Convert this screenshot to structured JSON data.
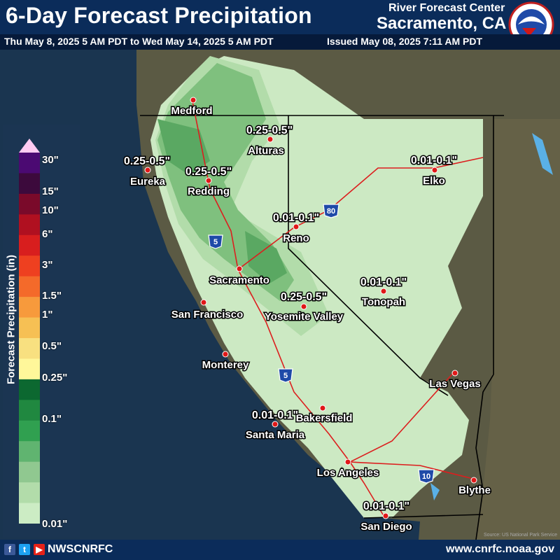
{
  "header": {
    "title": "6-Day Forecast Precipitation",
    "rfc_name": "River Forecast Center",
    "rfc_city": "Sacramento, CA",
    "period": "Thu May 8, 2025 5 AM PDT to Wed May 14, 2025 5 AM PDT",
    "issued": "Issued May 08, 2025 7:11 AM PDT",
    "logo_text": "NATIONAL WEATHER SERVICE",
    "logo_icon": "nws-logo-icon"
  },
  "legend": {
    "title": "Forecast Precipitation (in)",
    "labels": [
      "30\"",
      "15\"",
      "10\"",
      "6\"",
      "3\"",
      "1.5\"",
      "1\"",
      "0.5\"",
      "0.25\"",
      "0.1\"",
      "0.01\""
    ],
    "colors": [
      "#ffccf2",
      "#4b0a72",
      "#3c0a3c",
      "#7a0a2a",
      "#b01020",
      "#d81e1e",
      "#ee4020",
      "#f46a2a",
      "#f79a3c",
      "#f6c054",
      "#f8e080",
      "#fff79a",
      "#0c6830",
      "#208840",
      "#30a050",
      "#60b470",
      "#90c890",
      "#b2dcaa",
      "#ccecc4"
    ]
  },
  "map": {
    "cities": [
      "Medford",
      "Eureka",
      "Redding",
      "Alturas",
      "Reno",
      "Elko",
      "Sacramento",
      "San Francisco",
      "Yosemite Valley",
      "Tonopah",
      "Monterey",
      "Las Vegas",
      "Bakersfield",
      "Santa Maria",
      "Los Angeles",
      "Blythe",
      "San Diego"
    ],
    "ranges": {
      "alturas": "0.25-0.5\"",
      "eureka": "0.25-0.5\"",
      "redding": "0.25-0.5\"",
      "elko": "0.01-0.1\"",
      "reno": "0.01-0.1\"",
      "tonopah": "0.01-0.1\"",
      "yosemite": "0.25-0.5\"",
      "santa_maria": "0.01-0.1\"",
      "san_diego": "0.01-0.1\""
    },
    "interstates": [
      "5",
      "80",
      "5",
      "10"
    ],
    "credit": "Source: US National Park Service"
  },
  "footer": {
    "handle": "NWSCNRFC",
    "website": "www.cnrfc.noaa.gov",
    "icons": [
      "facebook-icon",
      "twitter-icon",
      "youtube-icon"
    ]
  }
}
